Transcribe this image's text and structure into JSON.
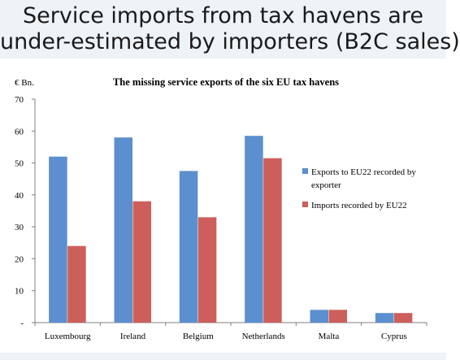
{
  "slide": {
    "title_line1": "Service imports from tax havens are",
    "title_line2": "under-estimated by importers (B2C sales)"
  },
  "chart_data": {
    "type": "bar",
    "title": "The missing service exports of the six EU tax havens",
    "unit_label": "€ Bn.",
    "categories": [
      "Luxembourg",
      "Ireland",
      "Belgium",
      "Netherlands",
      "Malta",
      "Cyprus"
    ],
    "series": [
      {
        "name": "Exports to EU22 recorded by exporter",
        "color": "#5b8fcf",
        "values": [
          52,
          58,
          47.5,
          58.5,
          4,
          3
        ]
      },
      {
        "name": "Imports recorded by EU22",
        "color": "#cd5f5a",
        "values": [
          24,
          38,
          33,
          51.5,
          4,
          3
        ]
      }
    ],
    "ylim": [
      0,
      70
    ],
    "yticks": [
      0,
      10,
      20,
      30,
      40,
      50,
      60,
      70
    ],
    "ytick_labels": [
      "-",
      "10",
      "20",
      "30",
      "40",
      "50",
      "60",
      "70"
    ],
    "grid": false,
    "legend_position": "right"
  }
}
